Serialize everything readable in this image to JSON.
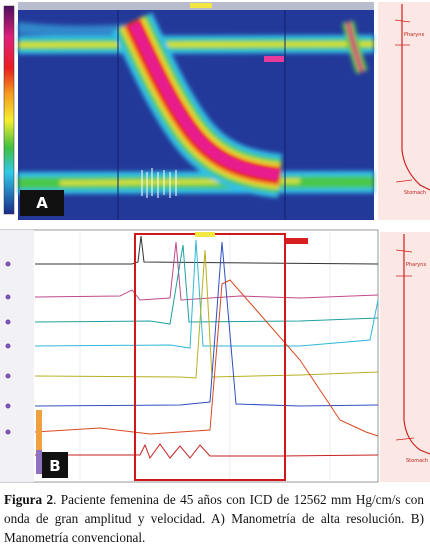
{
  "panels": [
    {
      "letter": "A",
      "labels": [
        "Pharynx",
        "Stomach"
      ]
    },
    {
      "letter": "B",
      "labels": [
        "Pharynx",
        "Stomach"
      ]
    }
  ],
  "caption": {
    "label": "Figura 2",
    "text": ". Paciente femenina de 45 años con ICD de 12562 mm Hg/cm/s con onda de gran amplitud y velocidad. A) Manometría de alta resolución. B) Manometría convencional."
  }
}
